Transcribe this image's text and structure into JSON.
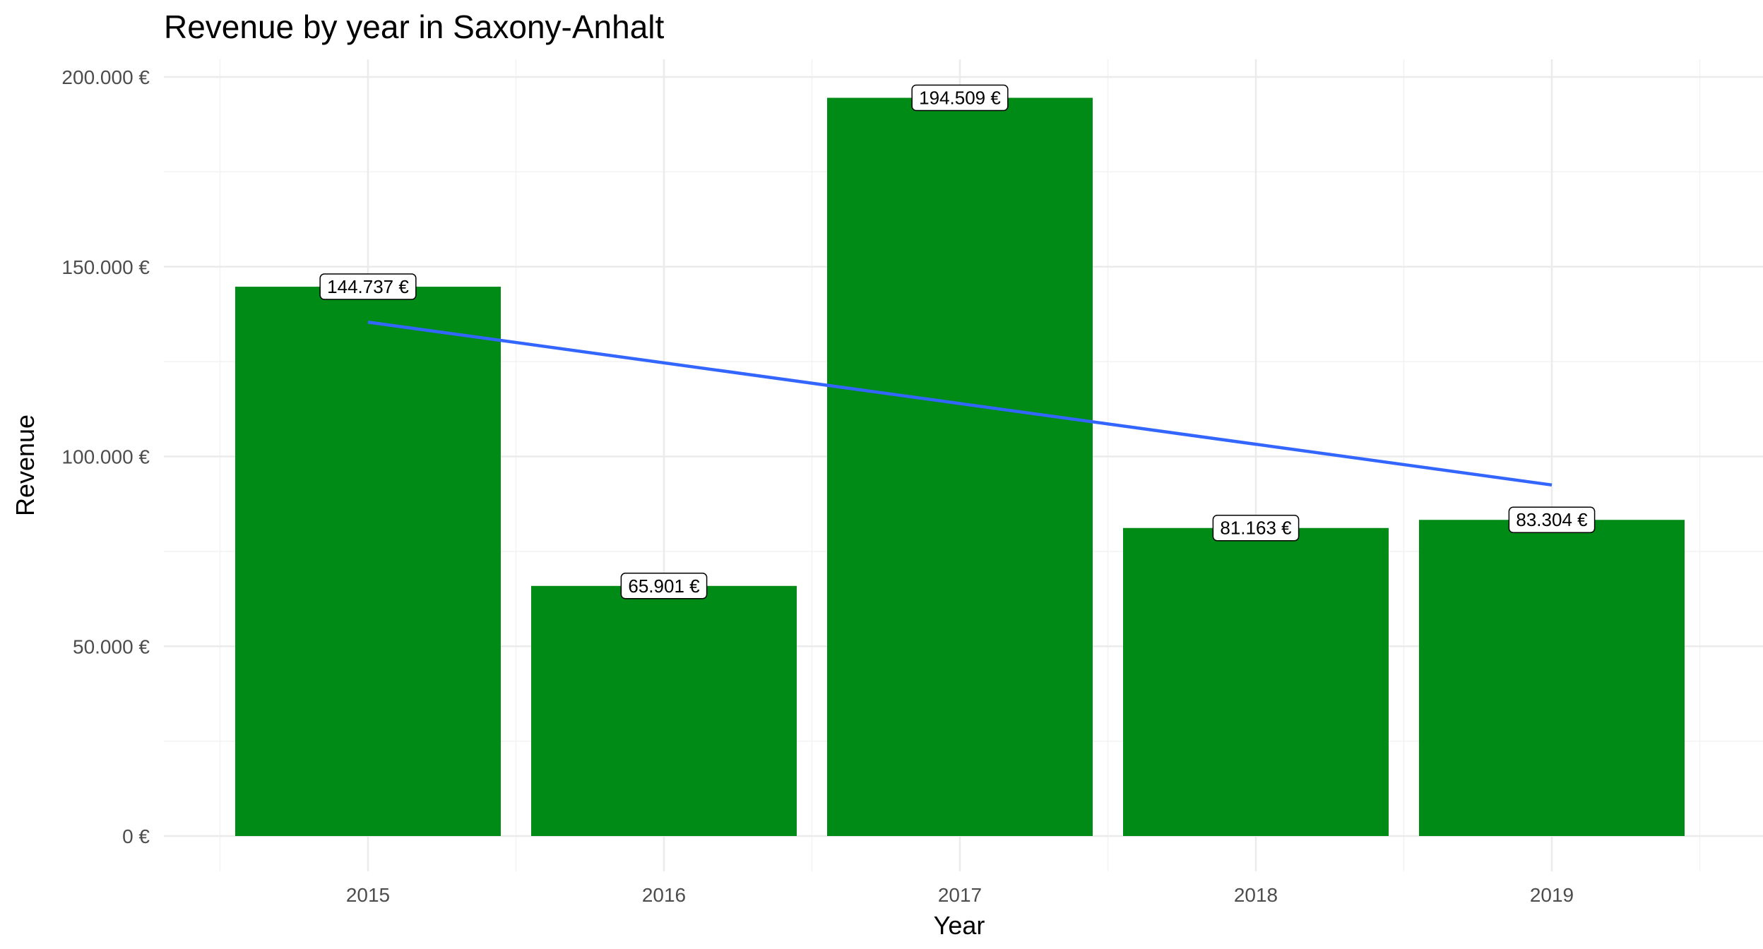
{
  "chart_data": {
    "type": "bar",
    "title": "Revenue by year in Saxony-Anhalt",
    "xlabel": "Year",
    "ylabel": "Revenue",
    "categories": [
      "2015",
      "2016",
      "2017",
      "2018",
      "2019"
    ],
    "values": [
      144737,
      65901,
      194509,
      81163,
      83304
    ],
    "value_labels": [
      "144.737 €",
      "65.901 €",
      "194.509 €",
      "81.163 €",
      "83.304 €"
    ],
    "ylim": [
      0,
      200000
    ],
    "yticks": [
      0,
      50000,
      100000,
      150000,
      200000
    ],
    "ytick_labels": [
      "0 €",
      "50.000 €",
      "100.000 €",
      "150.000 €",
      "200.000 €"
    ],
    "trend_line": {
      "start": [
        2015,
        135400
      ],
      "end": [
        2019,
        92500
      ]
    },
    "bar_color": "#008b17",
    "trend_color": "#3366ff",
    "grid": true
  }
}
